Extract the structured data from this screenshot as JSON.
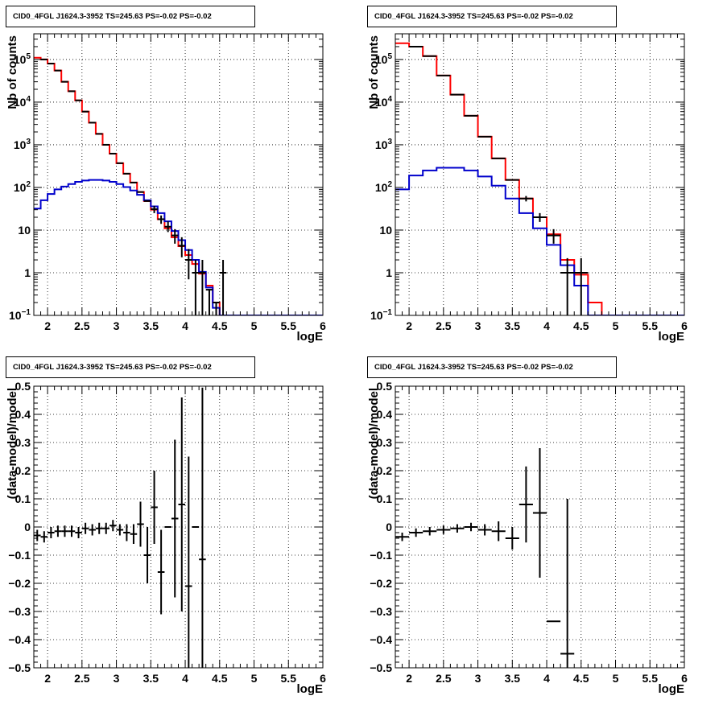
{
  "chart_data": [
    {
      "type": "histogram",
      "panel": "top-left",
      "title": "CID0_4FGL J1624.3-3952 TS=245.63 PS=-0.02 PS=-0.02",
      "xlabel": "logE",
      "ylabel": "Nb of counts",
      "xlim": [
        1.8,
        6.0
      ],
      "ylim": [
        0.1,
        400000
      ],
      "yscale": "log",
      "grid": true,
      "x_ticks": [
        "2",
        "2.5",
        "3",
        "3.5",
        "4",
        "4.5",
        "5",
        "5.5",
        "6"
      ],
      "y_ticks": [
        "10^-1",
        "1",
        "10",
        "10^2",
        "10^3",
        "10^4",
        "10^5"
      ],
      "bin_edges": [
        1.8,
        1.9,
        2.0,
        2.1,
        2.2,
        2.3,
        2.4,
        2.5,
        2.6,
        2.7,
        2.8,
        2.9,
        3.0,
        3.1,
        3.2,
        3.3,
        3.4,
        3.5,
        3.6,
        3.7,
        3.8,
        3.9,
        4.0,
        4.1,
        4.2,
        4.3,
        4.4,
        4.5,
        4.6,
        4.7,
        4.8,
        4.9,
        5.0,
        5.1,
        5.2,
        5.3,
        5.4,
        5.5,
        5.6,
        5.7,
        5.8,
        5.9,
        6.0
      ],
      "series": [
        {
          "name": "",
          "color": "#ff0000",
          "style": "step",
          "values": [
            110000,
            100000,
            80000,
            55000,
            30000,
            18000,
            11000,
            6000,
            3300,
            1800,
            1000,
            620,
            370,
            210,
            130,
            78,
            48,
            30,
            18,
            11,
            6.8,
            4.2,
            2.6,
            1.6,
            0.95,
            0.5,
            0.2,
            0.1,
            0.1,
            0.1,
            0.1,
            0.1,
            0.1,
            0.1,
            0.1,
            0.1,
            0.1,
            0.1,
            0.1,
            0.1,
            0.1,
            0.1
          ]
        },
        {
          "name": "",
          "color": "#0000cc",
          "style": "step",
          "values": [
            32,
            50,
            70,
            90,
            105,
            120,
            135,
            145,
            150,
            150,
            145,
            135,
            120,
            102,
            85,
            67,
            50,
            36,
            25,
            16,
            9.5,
            5.8,
            3.4,
            2.0,
            1.05,
            0.45,
            0.15,
            0.1,
            0.1,
            0.1,
            0.1,
            0.1,
            0.1,
            0.1,
            0.1,
            0.1,
            0.1,
            0.1,
            0.1,
            0.1,
            0.1,
            0.1
          ]
        }
      ],
      "points": {
        "color": "#000000",
        "x": [
          1.95,
          2.05,
          2.15,
          2.25,
          2.35,
          2.45,
          2.55,
          2.65,
          2.75,
          2.85,
          2.95,
          3.05,
          3.15,
          3.25,
          3.35,
          3.45,
          3.55,
          3.65,
          3.75,
          3.85,
          3.95,
          4.05,
          4.15,
          4.25,
          4.35,
          4.45,
          4.55
        ],
        "y": [
          100000,
          80000,
          55000,
          30000,
          18000,
          11000,
          6000,
          3300,
          1800,
          1000,
          620,
          370,
          210,
          130,
          78,
          48,
          31,
          18,
          12,
          7.5,
          4.3,
          2.0,
          1.0,
          1.0,
          0.4,
          0.2,
          1.0
        ],
        "yerr_low": [
          0,
          0,
          0,
          0,
          0,
          0,
          0,
          0,
          0,
          0,
          0,
          0,
          0,
          0,
          0,
          0,
          6,
          4,
          3,
          2.7,
          2.0,
          1.3,
          1.0,
          1.0,
          0.4,
          0.2,
          1.0
        ],
        "yerr_high": [
          0,
          0,
          0,
          0,
          0,
          0,
          0,
          0,
          0,
          0,
          0,
          0,
          0,
          0,
          0,
          0,
          6,
          4,
          4,
          3.0,
          2.5,
          1.6,
          1.0,
          1.0,
          0,
          0,
          1.0
        ]
      }
    },
    {
      "type": "histogram",
      "panel": "top-right",
      "title": "CID0_4FGL J1624.3-3952 TS=245.63 PS=-0.02 PS=-0.02",
      "xlabel": "logE",
      "ylabel": "Nb of counts",
      "xlim": [
        1.8,
        6.0
      ],
      "ylim": [
        0.1,
        400000
      ],
      "yscale": "log",
      "grid": true,
      "x_ticks": [
        "2",
        "2.5",
        "3",
        "3.5",
        "4",
        "4.5",
        "5",
        "5.5",
        "6"
      ],
      "y_ticks": [
        "10^-1",
        "1",
        "10",
        "10^2",
        "10^3",
        "10^4",
        "10^5"
      ],
      "bin_edges": [
        1.8,
        2.0,
        2.2,
        2.4,
        2.6,
        2.8,
        3.0,
        3.2,
        3.4,
        3.6,
        3.8,
        4.0,
        4.2,
        4.4,
        4.6,
        4.8,
        5.0,
        5.2,
        5.4,
        5.6,
        5.8,
        6.0
      ],
      "series": [
        {
          "name": "",
          "color": "#ff0000",
          "style": "step",
          "values": [
            240000,
            200000,
            120000,
            42000,
            15000,
            4800,
            1550,
            480,
            150,
            55,
            20,
            8,
            2.0,
            0.9,
            0.2,
            0.1,
            0.1,
            0.1,
            0.1,
            0.1,
            0.1
          ]
        },
        {
          "name": "",
          "color": "#0000cc",
          "style": "step",
          "values": [
            90,
            190,
            250,
            290,
            290,
            250,
            180,
            110,
            55,
            25,
            11,
            4.5,
            1.5,
            0.5,
            0.1,
            0.1,
            0.1,
            0.1,
            0.1,
            0.1,
            0.1
          ]
        }
      ],
      "points": {
        "color": "#000000",
        "x": [
          2.1,
          2.3,
          2.5,
          2.7,
          2.9,
          3.1,
          3.3,
          3.5,
          3.7,
          3.9,
          4.1,
          4.3,
          4.5
        ],
        "y": [
          200000,
          120000,
          42000,
          15000,
          4800,
          1550,
          480,
          150,
          55,
          20,
          7.5,
          1.0,
          1.0
        ],
        "yerr_low": [
          0,
          0,
          0,
          0,
          0,
          0,
          0,
          0,
          8,
          4.5,
          2.7,
          1.0,
          1.0
        ],
        "yerr_high": [
          0,
          0,
          0,
          0,
          0,
          0,
          0,
          0,
          8,
          5.0,
          3.0,
          1.2,
          1.2
        ]
      }
    },
    {
      "type": "scatter",
      "panel": "bottom-left",
      "title": "CID0_4FGL J1624.3-3952 TS=245.63 PS=-0.02 PS=-0.02",
      "xlabel": "logE",
      "ylabel": "(data-model)/model",
      "xlim": [
        1.8,
        6.0
      ],
      "ylim": [
        -0.5,
        0.5
      ],
      "grid": true,
      "x_ticks": [
        "2",
        "2.5",
        "3",
        "3.5",
        "4",
        "4.5",
        "5",
        "5.5",
        "6"
      ],
      "y_ticks": [
        "−0.5",
        "−0.4",
        "−0.3",
        "−0.2",
        "−0.1",
        "0",
        "0.1",
        "0.2",
        "0.3",
        "0.4",
        "0.5"
      ],
      "points": {
        "color": "#000000",
        "x": [
          1.85,
          1.95,
          2.05,
          2.15,
          2.25,
          2.35,
          2.45,
          2.55,
          2.65,
          2.75,
          2.85,
          2.95,
          3.05,
          3.15,
          3.25,
          3.35,
          3.45,
          3.55,
          3.65,
          3.75,
          3.85,
          3.95,
          4.05,
          4.15,
          4.25
        ],
        "y": [
          -0.03,
          -0.035,
          -0.02,
          -0.015,
          -0.015,
          -0.015,
          -0.02,
          -0.005,
          -0.01,
          -0.005,
          -0.005,
          0.005,
          -0.01,
          -0.02,
          -0.025,
          0.01,
          -0.1,
          0.07,
          -0.16,
          0.0,
          0.03,
          0.08,
          -0.21,
          0.0,
          -0.115
        ],
        "yerr": [
          0.02,
          0.02,
          0.02,
          0.02,
          0.02,
          0.02,
          0.02,
          0.02,
          0.02,
          0.02,
          0.02,
          0.02,
          0.02,
          0.03,
          0.035,
          0.08,
          0.1,
          0.13,
          0.15,
          0.0,
          0.28,
          0.38,
          0.46,
          0.0,
          0.61
        ],
        "xerr": 0.05
      }
    },
    {
      "type": "scatter",
      "panel": "bottom-right",
      "title": "CID0_4FGL J1624.3-3952 TS=245.63 PS=-0.02 PS=-0.02",
      "xlabel": "logE",
      "ylabel": "(data-model)/model",
      "xlim": [
        1.8,
        6.0
      ],
      "ylim": [
        -0.5,
        0.5
      ],
      "grid": true,
      "x_ticks": [
        "2",
        "2.5",
        "3",
        "3.5",
        "4",
        "4.5",
        "5",
        "5.5",
        "6"
      ],
      "y_ticks": [
        "−0.5",
        "−0.4",
        "−0.3",
        "−0.2",
        "−0.1",
        "0",
        "0.1",
        "0.2",
        "0.3",
        "0.4",
        "0.5"
      ],
      "points": {
        "color": "#000000",
        "x": [
          1.9,
          2.1,
          2.3,
          2.5,
          2.7,
          2.9,
          3.1,
          3.3,
          3.5,
          3.7,
          3.9,
          4.1,
          4.3
        ],
        "y": [
          -0.035,
          -0.02,
          -0.015,
          -0.01,
          -0.005,
          0.0,
          -0.01,
          -0.015,
          -0.04,
          0.08,
          0.05,
          -0.335,
          -0.45
        ],
        "yerr": [
          0.015,
          0.015,
          0.015,
          0.015,
          0.015,
          0.015,
          0.02,
          0.035,
          0.04,
          0.135,
          0.23,
          0.0,
          0.55
        ],
        "xerr": 0.1
      }
    }
  ]
}
